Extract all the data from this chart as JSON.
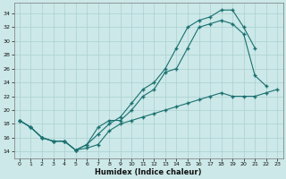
{
  "xlabel": "Humidex (Indice chaleur)",
  "bg_color": "#cce8e8",
  "grid_color": "#aad0d0",
  "line_color": "#1a7070",
  "xlim": [
    -0.5,
    23.5
  ],
  "ylim": [
    13.0,
    35.5
  ],
  "xticks": [
    0,
    1,
    2,
    3,
    4,
    5,
    6,
    7,
    8,
    9,
    10,
    11,
    12,
    13,
    14,
    15,
    16,
    17,
    18,
    19,
    20,
    21,
    22,
    23
  ],
  "yticks": [
    14,
    16,
    18,
    20,
    22,
    24,
    26,
    28,
    30,
    32,
    34
  ],
  "line1_x": [
    0,
    1,
    2,
    3,
    4,
    5,
    6,
    7,
    8,
    9,
    10,
    11,
    12,
    13,
    14,
    15,
    16,
    17,
    18,
    19,
    20,
    21
  ],
  "line1_y": [
    18.5,
    17.5,
    16.0,
    15.5,
    15.5,
    14.2,
    15.0,
    16.5,
    18.0,
    19.0,
    21.0,
    23.0,
    24.0,
    26.0,
    29.0,
    32.0,
    33.0,
    33.5,
    34.5,
    34.5,
    32.0,
    29.0
  ],
  "line2_x": [
    0,
    1,
    2,
    3,
    4,
    5,
    6,
    7,
    8,
    9,
    10,
    11,
    12,
    13,
    14,
    15,
    16,
    17,
    18,
    19,
    20,
    21,
    22
  ],
  "line2_y": [
    18.5,
    17.5,
    16.0,
    15.5,
    15.5,
    14.2,
    15.0,
    17.5,
    18.5,
    18.5,
    20.0,
    22.0,
    23.0,
    25.5,
    26.0,
    29.0,
    32.0,
    32.5,
    33.0,
    32.5,
    31.0,
    25.0,
    23.5
  ],
  "line3_x": [
    0,
    1,
    2,
    3,
    4,
    5,
    6,
    7,
    8,
    9,
    10,
    11,
    12,
    13,
    14,
    15,
    16,
    17,
    18,
    19,
    20,
    21,
    22,
    23
  ],
  "line3_y": [
    18.5,
    17.5,
    16.0,
    15.5,
    15.5,
    14.2,
    14.5,
    15.0,
    17.0,
    18.0,
    18.5,
    19.0,
    19.5,
    20.0,
    20.5,
    21.0,
    21.5,
    22.0,
    22.5,
    22.0,
    22.0,
    22.0,
    22.5,
    23.0
  ]
}
